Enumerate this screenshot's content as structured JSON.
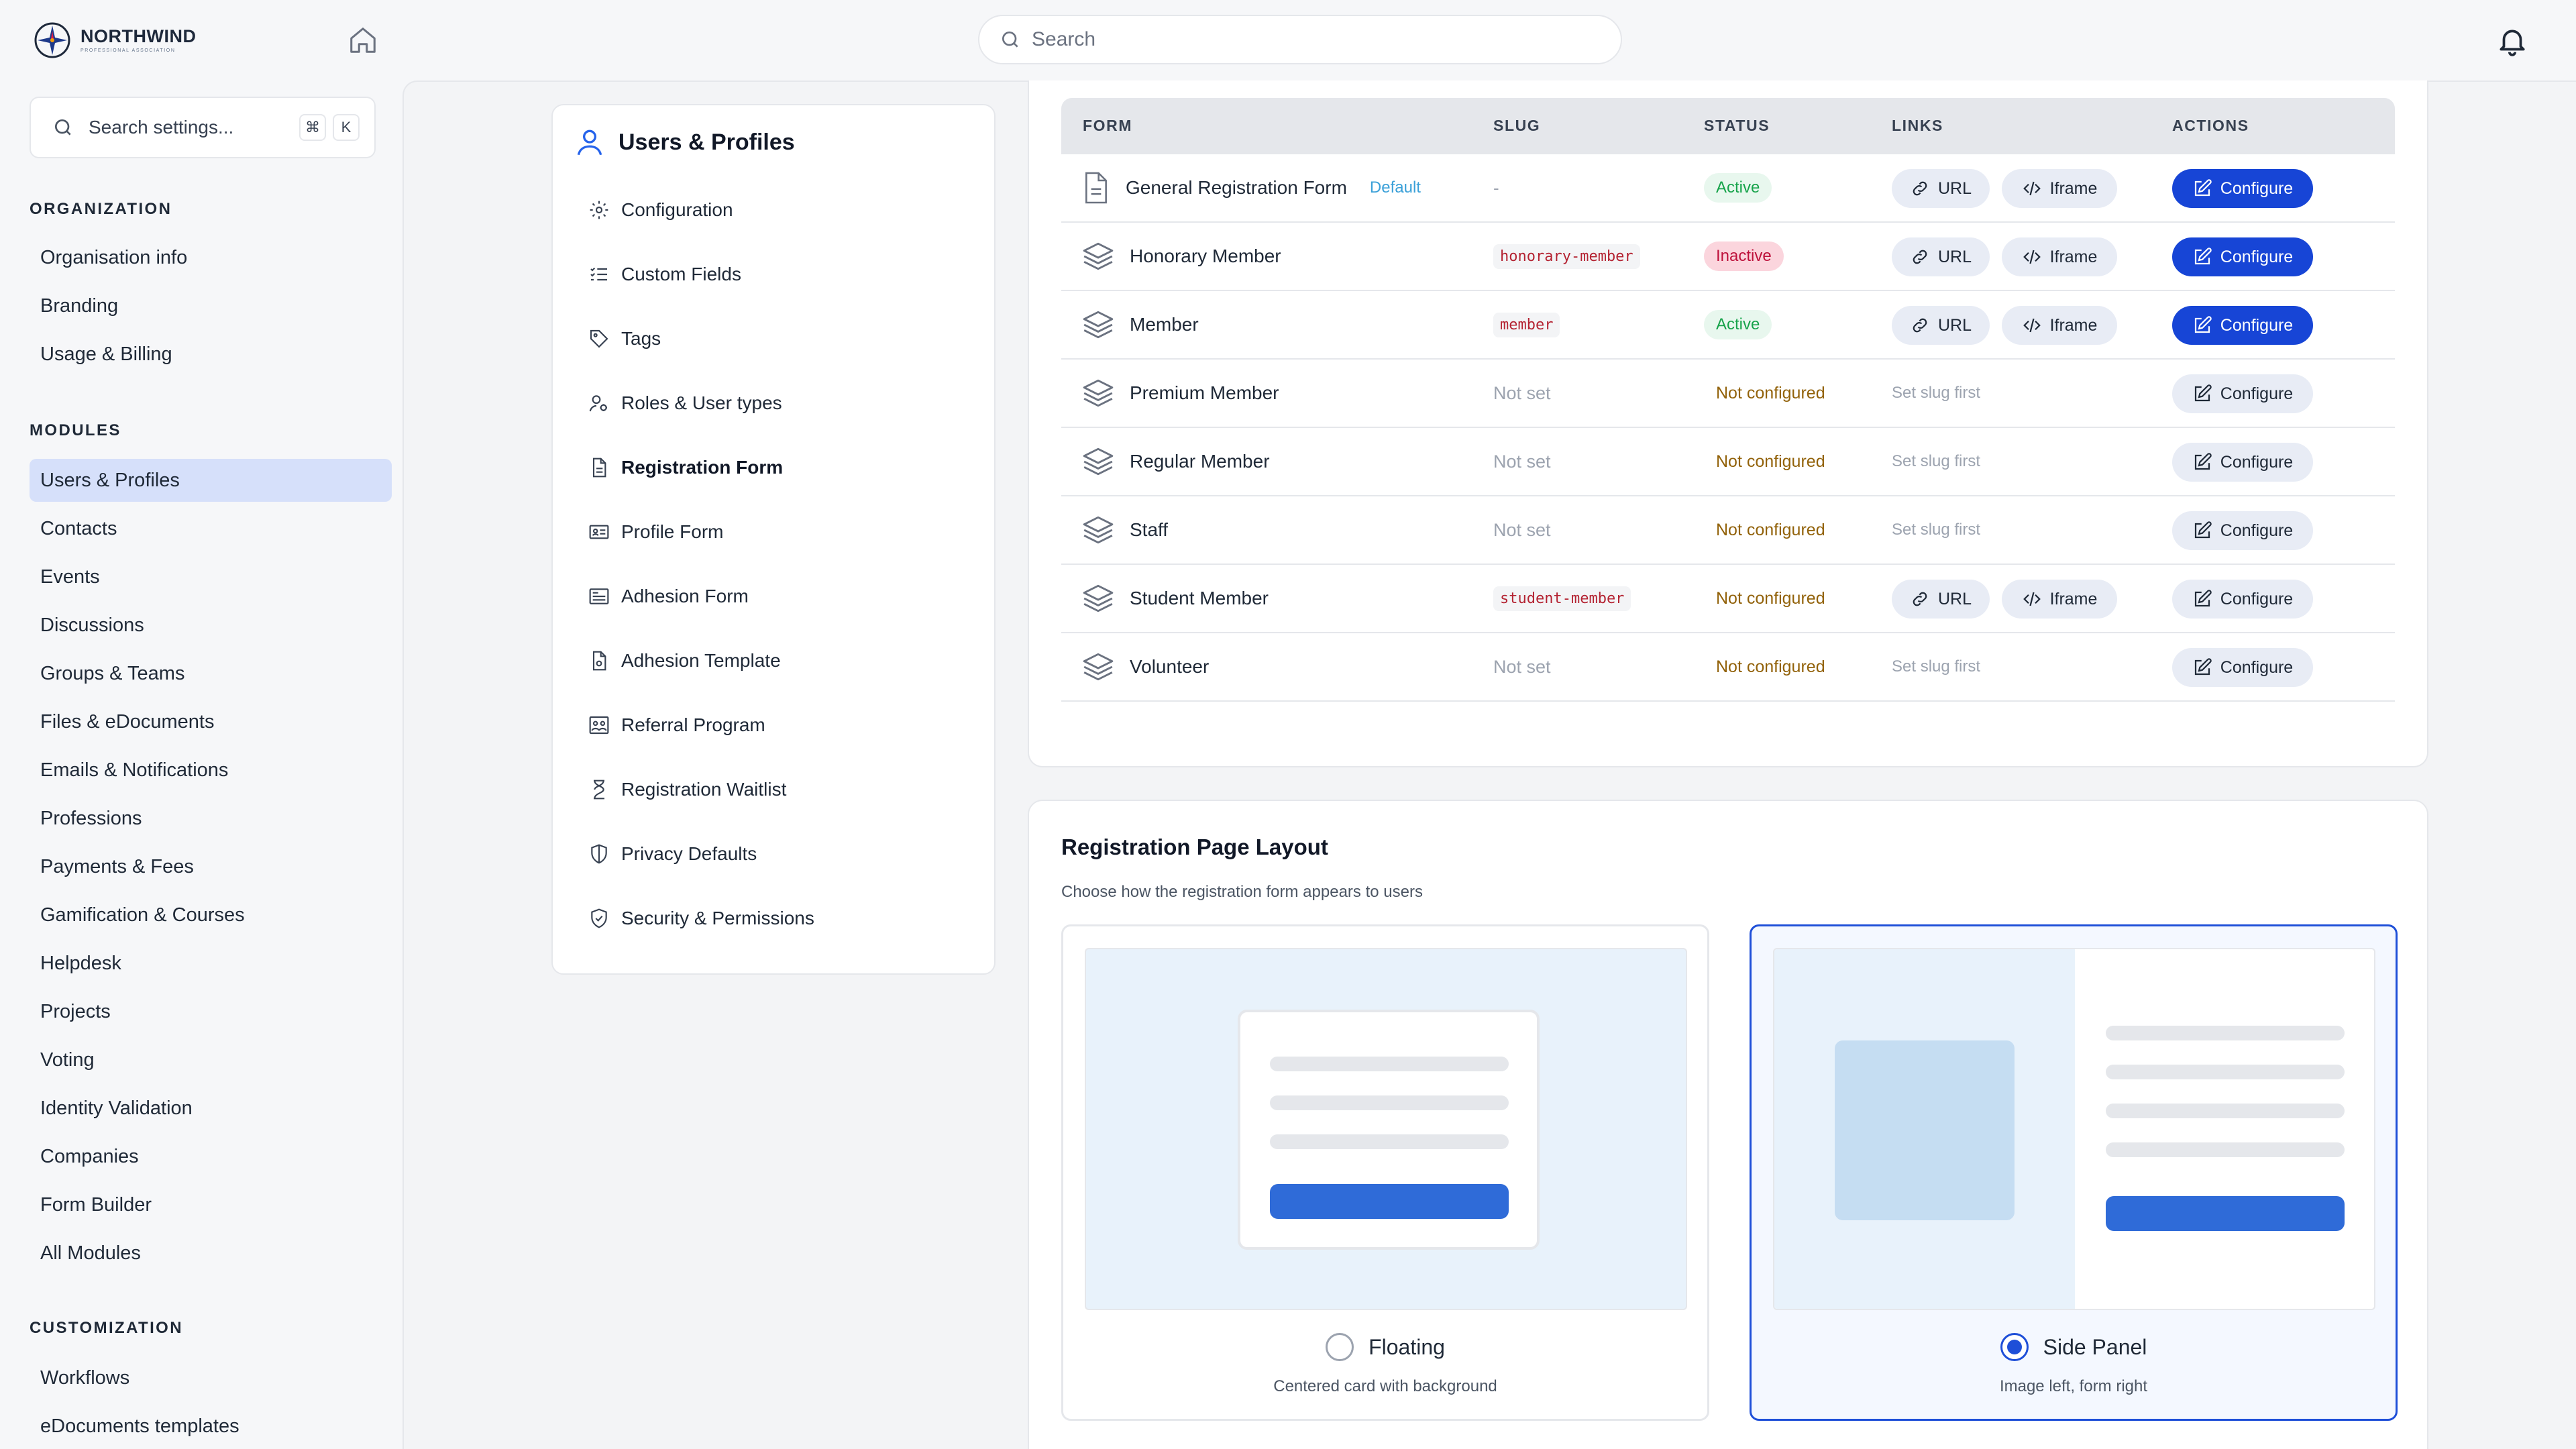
{
  "brand": {
    "name": "NORTHWIND",
    "tagline": "PROFESSIONAL ASSOCIATION"
  },
  "topbar": {
    "search_placeholder": "Search"
  },
  "sidebar": {
    "search_placeholder": "Search settings...",
    "shortcut": [
      "⌘",
      "K"
    ],
    "sections": [
      {
        "title": "ORGANIZATION",
        "items": [
          "Organisation info",
          "Branding",
          "Usage & Billing"
        ]
      },
      {
        "title": "MODULES",
        "items": [
          "Users & Profiles",
          "Contacts",
          "Events",
          "Discussions",
          "Groups & Teams",
          "Files & eDocuments",
          "Emails & Notifications",
          "Professions",
          "Payments & Fees",
          "Gamification & Courses",
          "Helpdesk",
          "Projects",
          "Voting",
          "Identity Validation",
          "Companies",
          "Form Builder",
          "All Modules"
        ]
      },
      {
        "title": "CUSTOMIZATION",
        "items": [
          "Workflows",
          "eDocuments templates"
        ]
      }
    ],
    "active_item": "Users & Profiles"
  },
  "subnav": {
    "title": "Users & Profiles",
    "items": [
      {
        "label": "Configuration",
        "icon": "gear-icon"
      },
      {
        "label": "Custom Fields",
        "icon": "list-check-icon"
      },
      {
        "label": "Tags",
        "icon": "tag-icon"
      },
      {
        "label": "Roles & User types",
        "icon": "users-role-icon"
      },
      {
        "label": "Registration Form",
        "icon": "document-icon"
      },
      {
        "label": "Profile Form",
        "icon": "id-card-icon"
      },
      {
        "label": "Adhesion Form",
        "icon": "form-icon"
      },
      {
        "label": "Adhesion Template",
        "icon": "document-settings-icon"
      },
      {
        "label": "Referral Program",
        "icon": "referral-icon"
      },
      {
        "label": "Registration Waitlist",
        "icon": "hourglass-icon"
      },
      {
        "label": "Privacy Defaults",
        "icon": "shield-half-icon"
      },
      {
        "label": "Security & Permissions",
        "icon": "shield-check-icon"
      }
    ],
    "active_item": "Registration Form"
  },
  "forms_table": {
    "headers": {
      "form": "FORM",
      "slug": "SLUG",
      "status": "STATUS",
      "links": "LINKS",
      "actions": "ACTIONS"
    },
    "url_label": "URL",
    "iframe_label": "Iframe",
    "configure_label": "Configure",
    "set_slug_first": "Set slug first",
    "default_label": "Default",
    "rows": [
      {
        "name": "General Registration Form",
        "icon": "document-icon",
        "default": true,
        "slug": "-",
        "slug_type": "dash",
        "status": "Active",
        "status_type": "active",
        "links": true,
        "primary": true
      },
      {
        "name": "Honorary Member",
        "icon": "layers-icon",
        "default": false,
        "slug": "honorary-member",
        "slug_type": "code",
        "status": "Inactive",
        "status_type": "inactive",
        "links": true,
        "primary": true
      },
      {
        "name": "Member",
        "icon": "layers-icon",
        "default": false,
        "slug": "member",
        "slug_type": "code",
        "status": "Active",
        "status_type": "active",
        "links": true,
        "primary": true
      },
      {
        "name": "Premium Member",
        "icon": "layers-icon",
        "default": false,
        "slug": "Not set",
        "slug_type": "notset",
        "status": "Not configured",
        "status_type": "notconf",
        "links": false,
        "primary": false
      },
      {
        "name": "Regular Member",
        "icon": "layers-icon",
        "default": false,
        "slug": "Not set",
        "slug_type": "notset",
        "status": "Not configured",
        "status_type": "notconf",
        "links": false,
        "primary": false
      },
      {
        "name": "Staff",
        "icon": "layers-icon",
        "default": false,
        "slug": "Not set",
        "slug_type": "notset",
        "status": "Not configured",
        "status_type": "notconf",
        "links": false,
        "primary": false
      },
      {
        "name": "Student Member",
        "icon": "layers-icon",
        "default": false,
        "slug": "student-member",
        "slug_type": "code",
        "status": "Not configured",
        "status_type": "notconf",
        "links": true,
        "primary": false
      },
      {
        "name": "Volunteer",
        "icon": "layers-icon",
        "default": false,
        "slug": "Not set",
        "slug_type": "notset",
        "status": "Not configured",
        "status_type": "notconf",
        "links": false,
        "primary": false
      }
    ]
  },
  "layout": {
    "title": "Registration Page Layout",
    "subtitle": "Choose how the registration form appears to users",
    "options": [
      {
        "label": "Floating",
        "description": "Centered card with background",
        "selected": false
      },
      {
        "label": "Side Panel",
        "description": "Image left, form right",
        "selected": true
      }
    ]
  },
  "colors": {
    "primary": "#1745d6",
    "active_sidebar_bg": "#d6e0fa",
    "status_active": "#16a34a",
    "status_inactive": "#be123c",
    "not_configured": "#92620a",
    "slug_code": "#b42332"
  }
}
